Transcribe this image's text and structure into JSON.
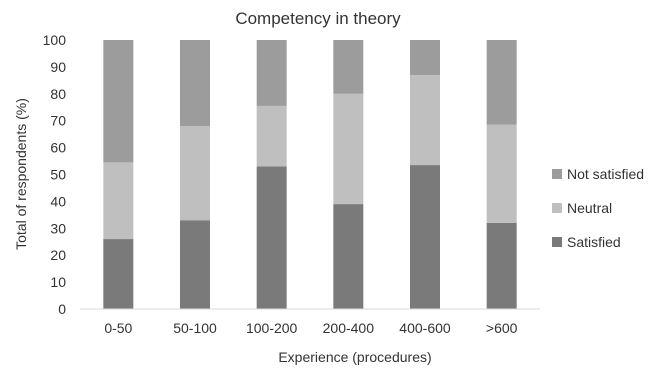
{
  "chart_data": {
    "type": "bar",
    "stacked": true,
    "title": "Competency in theory",
    "xlabel": "Experience (procedures)",
    "ylabel": "Total of respondents (%)",
    "ylim": [
      0,
      100
    ],
    "yticks": [
      0,
      10,
      20,
      30,
      40,
      50,
      60,
      70,
      80,
      90,
      100
    ],
    "grid": false,
    "legend_position": "right",
    "categories": [
      "0-50",
      "50-100",
      "100-200",
      "200-400",
      "400-600",
      ">600"
    ],
    "series": [
      {
        "name": "Satisfied",
        "color": "#7a7a7a",
        "values": [
          26,
          33,
          53,
          39,
          53.5,
          32
        ]
      },
      {
        "name": "Neutral",
        "color": "#bfbfbf",
        "values": [
          28.5,
          35,
          22.5,
          41,
          33.5,
          36.5
        ]
      },
      {
        "name": "Not satisfied",
        "color": "#9c9c9c",
        "values": [
          45.5,
          32,
          24.5,
          20,
          13,
          31.5
        ]
      }
    ]
  }
}
